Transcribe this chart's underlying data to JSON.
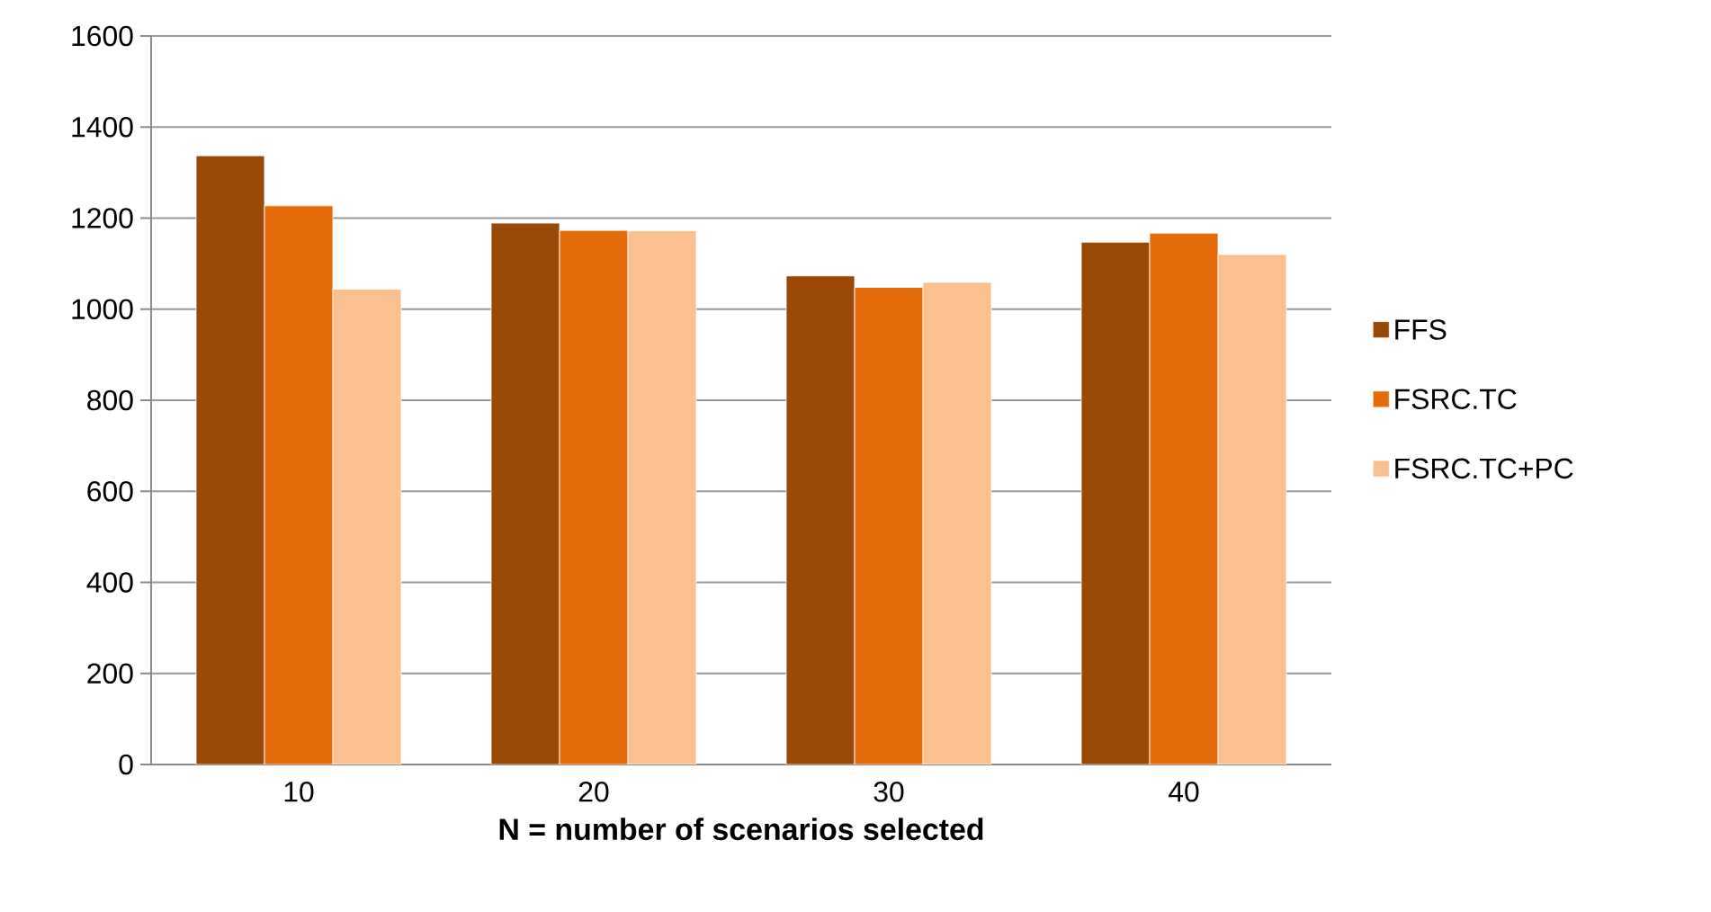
{
  "chart_data": {
    "type": "bar",
    "xlabel": "N = number of scenarios selected",
    "categories": [
      "10",
      "20",
      "30",
      "40"
    ],
    "series": [
      {
        "name": "FFS",
        "color": "#9a4806",
        "values": [
          1337,
          1189,
          1073,
          1147
        ]
      },
      {
        "name": "FSRC.TC",
        "color": "#e46c0a",
        "values": [
          1227,
          1173,
          1048,
          1167
        ]
      },
      {
        "name": "FSRC.TC+PC",
        "color": "#fac090",
        "values": [
          1044,
          1172,
          1059,
          1120
        ]
      }
    ],
    "ylim": [
      0,
      1600
    ],
    "yticks": [
      0,
      200,
      400,
      600,
      800,
      1000,
      1200,
      1400,
      1600
    ],
    "grid": "y",
    "legend": "right"
  }
}
